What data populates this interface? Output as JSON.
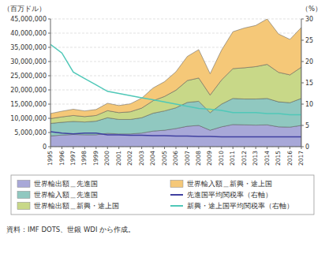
{
  "chart_data": {
    "type": "area",
    "stacked": true,
    "grid": true,
    "legend": "bottom",
    "ylabel": "（百万ドル）",
    "y2label": "（%）",
    "annotations": [
      "資料：IMF DOTS、世銀 WDI から作成。"
    ],
    "x": [
      1995,
      1996,
      1997,
      1998,
      1999,
      2000,
      2001,
      2002,
      2003,
      2004,
      2005,
      2006,
      2007,
      2008,
      2009,
      2010,
      2011,
      2012,
      2013,
      2014,
      2015,
      2016,
      2017
    ],
    "xlim": [
      1995,
      2017
    ],
    "xticks": [
      1995,
      1996,
      1997,
      1998,
      1999,
      2000,
      2001,
      2002,
      2003,
      2004,
      2005,
      2006,
      2007,
      2008,
      2009,
      2010,
      2011,
      2012,
      2013,
      2014,
      2015,
      2016,
      2017
    ],
    "ylim": [
      0,
      45000000
    ],
    "yticks": [
      0,
      {
        "value": 5000000,
        "label": "5,000,000"
      },
      {
        "value": 10000000,
        "label": "10,000,000"
      },
      {
        "value": 15000000,
        "label": "15,000,000"
      },
      {
        "value": 20000000,
        "label": "20,000,000"
      },
      {
        "value": 25000000,
        "label": "25,000,000"
      },
      {
        "value": 30000000,
        "label": "30,000,000"
      },
      {
        "value": 35000000,
        "label": "35,000,000"
      },
      {
        "value": 40000000,
        "label": "40,000,000"
      },
      {
        "value": 45000000,
        "label": "45,000,000"
      }
    ],
    "y2lim": [
      0,
      30
    ],
    "y2ticks": [
      0,
      5,
      10,
      15,
      20,
      25,
      30
    ],
    "series": [
      {
        "name": "世界輸出額＿先進国",
        "type": "area",
        "color": "#a8a8d8",
        "values": [
          3800000,
          4100000,
          4300000,
          4200000,
          4200000,
          4700000,
          4500000,
          4500000,
          4800000,
          5500000,
          5800000,
          6400000,
          7200000,
          7500000,
          5800000,
          7000000,
          7800000,
          7700000,
          7600000,
          7700000,
          7000000,
          6900000,
          7500000
        ]
      },
      {
        "name": "世界輸入額＿先進国",
        "type": "area",
        "color": "#90c8c0",
        "values": [
          4400000,
          4500000,
          4600000,
          4500000,
          4800000,
          5500000,
          5100000,
          5100000,
          5400000,
          6300000,
          6800000,
          7300000,
          8400000,
          8500000,
          6200000,
          8000000,
          9200000,
          9100000,
          9200000,
          9300000,
          8800000,
          8600000,
          9500000
        ]
      },
      {
        "name": "世界輸出額＿新興・途上国",
        "type": "area",
        "color": "#c8d888",
        "values": [
          1700000,
          1900000,
          2100000,
          1900000,
          2000000,
          2500000,
          2400000,
          2700000,
          3400000,
          4400000,
          5100000,
          6200000,
          7700000,
          8200000,
          6200000,
          8500000,
          10500000,
          11000000,
          11400000,
          12000000,
          10400000,
          9800000,
          11000000
        ]
      },
      {
        "name": "世界輸入額＿新興・途上国",
        "type": "area",
        "color": "#f5c878",
        "values": [
          1800000,
          2000000,
          2200000,
          2000000,
          2100000,
          2600000,
          2500000,
          2800000,
          3500000,
          4500000,
          5200000,
          6500000,
          8500000,
          10000000,
          7500000,
          10500000,
          13000000,
          14000000,
          14500000,
          16000000,
          13500000,
          12500000,
          14000000
        ]
      },
      {
        "name": "先進国平均関税率（右軸）",
        "type": "line",
        "axis": "y2",
        "color": "#4040a0",
        "values": [
          3.5,
          3.2,
          3.0,
          3.2,
          3.2,
          2.8,
          2.8,
          2.7,
          2.7,
          2.6,
          2.6,
          2.5,
          2.5,
          2.4,
          2.4,
          2.3,
          2.3,
          2.3,
          2.3,
          2.3,
          2.3,
          2.3,
          2.3
        ]
      },
      {
        "name": "新興・途上国平均関税率（右軸）",
        "type": "line",
        "axis": "y2",
        "color": "#50c8b8",
        "values": [
          24.0,
          22.0,
          17.5,
          16.0,
          14.5,
          13.0,
          12.5,
          12.0,
          11.5,
          11.0,
          10.5,
          10.0,
          9.5,
          9.0,
          8.8,
          8.5,
          8.0,
          8.0,
          8.0,
          7.8,
          7.8,
          7.5,
          7.5
        ]
      }
    ]
  }
}
